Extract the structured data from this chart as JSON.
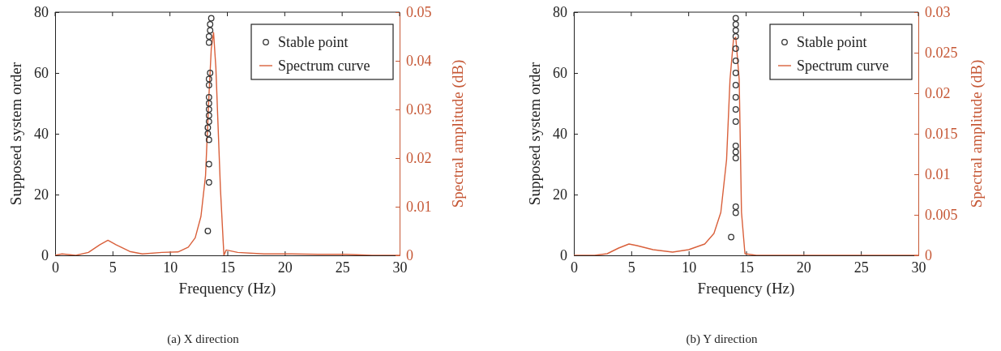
{
  "chart_data": [
    {
      "type": "scatter",
      "xlabel": "Frequency (Hz)",
      "ylabel": "Supposed system order",
      "y2label": "Spectral amplitude (dB)",
      "xlim": [
        0,
        30
      ],
      "xticks": [
        0,
        5,
        10,
        15,
        20,
        25,
        30
      ],
      "ylim": [
        0,
        80
      ],
      "yticks": [
        0,
        20,
        40,
        60,
        80
      ],
      "y2lim": [
        0,
        0.05
      ],
      "y2ticks": [
        0,
        0.01,
        0.02,
        0.03,
        0.04,
        0.05
      ],
      "legend": "top right",
      "marker": "circle",
      "annotations": [
        "(a) X direction"
      ],
      "series": [
        {
          "name": "Stable point",
          "type": "scatter",
          "color": "#333333",
          "x": [
            13.6,
            13.5,
            13.5,
            13.4,
            13.4,
            13.5,
            13.4,
            13.4,
            13.4,
            13.4,
            13.4,
            13.4,
            13.4,
            13.3,
            13.3,
            13.4,
            13.4,
            13.4,
            13.3
          ],
          "values": [
            78,
            76,
            74,
            72,
            70,
            60,
            58,
            56,
            52,
            50,
            48,
            46,
            44,
            42,
            40,
            38,
            30,
            24,
            8
          ]
        },
        {
          "name": "Spectrum curve",
          "type": "line",
          "axis": "y2",
          "marker": "none",
          "color": "#d9603b",
          "x": [
            0,
            0.6,
            1.8,
            2.9,
            3.9,
            4.6,
            5.3,
            6.5,
            7.6,
            9.3,
            10.7,
            11.6,
            12.2,
            12.7,
            13.1,
            13.4,
            13.6,
            13.8,
            14.0,
            14.4,
            14.7,
            14.9,
            15.9,
            18.2,
            20.6,
            22.9,
            25.3,
            27.6,
            30
          ],
          "values": [
            0,
            0.0003,
            0,
            0.0006,
            0.0022,
            0.0031,
            0.0022,
            0.0008,
            0.0003,
            0.0006,
            0.0007,
            0.0017,
            0.0036,
            0.008,
            0.0164,
            0.033,
            0.0425,
            0.0458,
            0.0386,
            0.0136,
            0,
            0.0011,
            0.0006,
            0.0003,
            0.0003,
            0.0002,
            0.0002,
            0,
            0
          ]
        }
      ]
    },
    {
      "type": "scatter",
      "xlabel": "Frequency (Hz)",
      "ylabel": "Supposed system order",
      "y2label": "Spectral amplitude (dB)",
      "xlim": [
        0,
        30
      ],
      "xticks": [
        0,
        5,
        10,
        15,
        20,
        25,
        30
      ],
      "ylim": [
        0,
        80
      ],
      "yticks": [
        0,
        20,
        40,
        60,
        80
      ],
      "y2lim": [
        0,
        0.03
      ],
      "y2ticks": [
        0,
        0.005,
        0.01,
        0.015,
        0.02,
        0.025,
        0.03
      ],
      "legend": "top right",
      "marker": "circle",
      "annotations": [
        "(b) Y direction"
      ],
      "series": [
        {
          "name": "Stable point",
          "type": "scatter",
          "color": "#333333",
          "x": [
            14.1,
            14.1,
            14.1,
            14.1,
            14.1,
            14.1,
            14.1,
            14.1,
            14.1,
            14.1,
            14.1,
            14.1,
            14.1,
            14.1,
            14.1,
            14.1,
            13.7
          ],
          "values": [
            78,
            76,
            74,
            72,
            68,
            64,
            60,
            56,
            52,
            48,
            44,
            36,
            34,
            32,
            16,
            14,
            6
          ]
        },
        {
          "name": "Spectrum curve",
          "type": "line",
          "axis": "y2",
          "marker": "none",
          "color": "#d9603b",
          "x": [
            0,
            1.8,
            2.9,
            3.9,
            4.8,
            5.5,
            6.9,
            8.6,
            10.0,
            11.4,
            12.2,
            12.8,
            13.3,
            13.6,
            13.9,
            14.1,
            14.4,
            14.6,
            14.9,
            15.9,
            30
          ],
          "values": [
            0,
            0,
            0.0002,
            0.0009,
            0.0014,
            0.0012,
            0.0007,
            0.0004,
            0.0007,
            0.0014,
            0.0027,
            0.0053,
            0.0118,
            0.0217,
            0.0266,
            0.0269,
            0.0217,
            0.0053,
            0.0002,
            0,
            0
          ]
        }
      ]
    }
  ]
}
